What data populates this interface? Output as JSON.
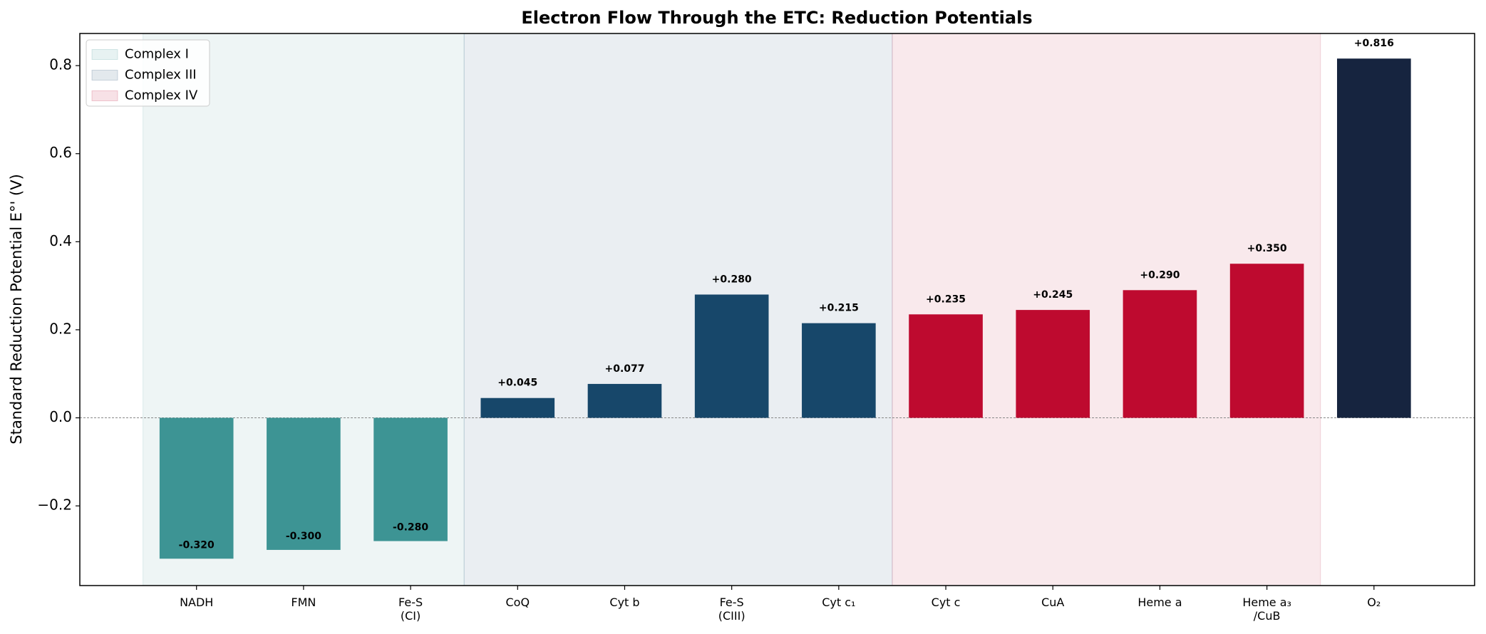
{
  "chart_data": {
    "type": "bar",
    "title": "Electron Flow Through the ETC: Reduction Potentials",
    "ylabel": "Standard Reduction Potential E°' (V)",
    "categories": [
      "NADH",
      "FMN",
      "Fe-S\n(CI)",
      "CoQ",
      "Cyt b",
      "Fe-S\n(CIII)",
      "Cyt c₁",
      "Cyt c",
      "CuA",
      "Heme a",
      "Heme a₃\n/CuB",
      "O₂"
    ],
    "values": [
      -0.32,
      -0.3,
      -0.28,
      0.045,
      0.077,
      0.28,
      0.215,
      0.235,
      0.245,
      0.29,
      0.35,
      0.816
    ],
    "value_labels": [
      "-0.320",
      "-0.300",
      "-0.280",
      "+0.045",
      "+0.077",
      "+0.280",
      "+0.215",
      "+0.235",
      "+0.245",
      "+0.290",
      "+0.350",
      "+0.816"
    ],
    "colors": [
      "#3d9494",
      "#3d9494",
      "#3d9494",
      "#17476a",
      "#17476a",
      "#17476a",
      "#17476a",
      "#be0a2f",
      "#be0a2f",
      "#be0a2f",
      "#be0a2f",
      "#16243f"
    ],
    "regions": [
      {
        "name": "Complex I",
        "color": "#3d9494",
        "first": "NADH",
        "last": "Fe-S\n(CI)"
      },
      {
        "name": "Complex III",
        "color": "#17476a",
        "first": "CoQ",
        "last": "Cyt c₁"
      },
      {
        "name": "Complex IV",
        "color": "#be0a2f",
        "first": "Cyt c",
        "last": "Heme a₃\n/CuB"
      }
    ],
    "ylim": [
      -0.381,
      0.873
    ],
    "yticks": [
      {
        "value": -0.2,
        "label": "−0.2"
      },
      {
        "value": 0,
        "label": "0.0"
      },
      0.2,
      0.4,
      0.6,
      0.8
    ],
    "legend": "upper left",
    "grid": false
  }
}
